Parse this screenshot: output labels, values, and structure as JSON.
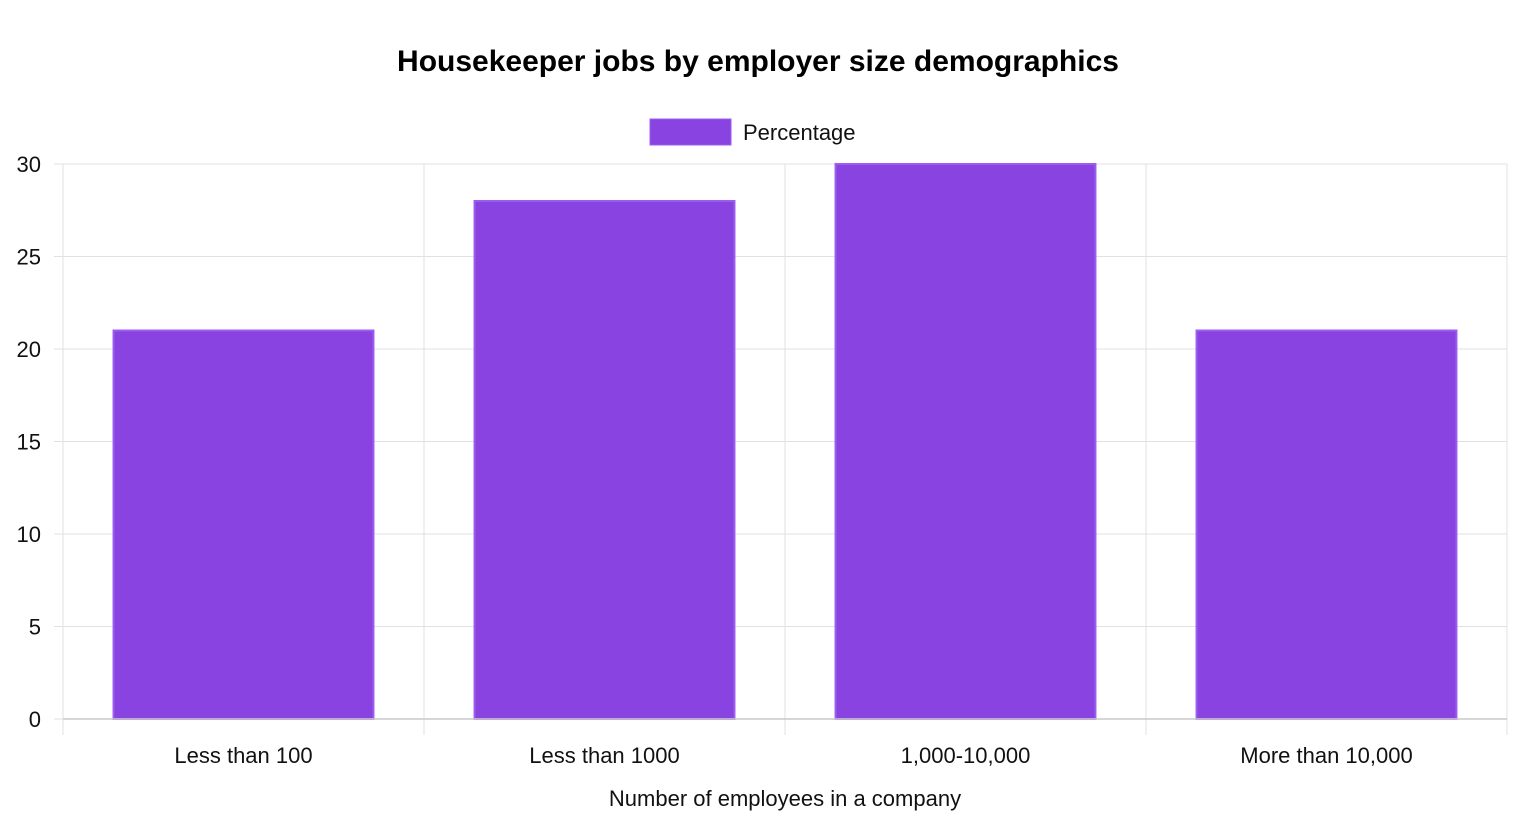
{
  "chart_data": {
    "type": "bar",
    "title": "Housekeeper jobs by employer size demographics",
    "xlabel": "Number of employees in a company",
    "ylabel": "",
    "categories": [
      "Less than 100",
      "Less than 1000",
      "1,000-10,000",
      "More than 10,000"
    ],
    "series": [
      {
        "name": "Percentage",
        "values": [
          21,
          28,
          30,
          21
        ]
      }
    ],
    "ylim": [
      0,
      30
    ],
    "yticks": [
      0,
      5,
      10,
      15,
      20,
      25,
      30
    ],
    "grid": true,
    "legend_position": "top-center",
    "colors": {
      "bar_fill": "#8843e0",
      "bar_border": "#9d5cf0"
    }
  }
}
